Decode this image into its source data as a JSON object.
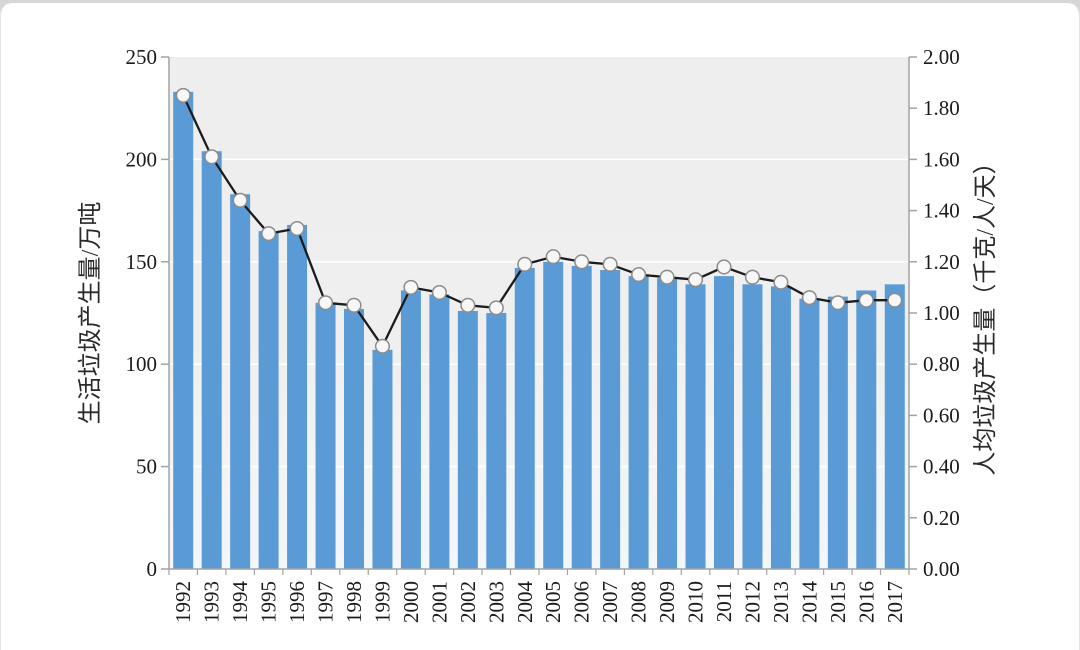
{
  "chart_data": {
    "type": "combo-bar-line",
    "title": "",
    "categories": [
      "1992",
      "1993",
      "1994",
      "1995",
      "1996",
      "1997",
      "1998",
      "1999",
      "2000",
      "2001",
      "2002",
      "2003",
      "2004",
      "2005",
      "2006",
      "2007",
      "2008",
      "2009",
      "2010",
      "2011",
      "2012",
      "2013",
      "2014",
      "2015",
      "2016",
      "2017"
    ],
    "series": [
      {
        "name": "生活垃圾产生量",
        "type": "bar",
        "axis": "left",
        "values": [
          233,
          204,
          183,
          165,
          168,
          130,
          127,
          107,
          136,
          134,
          126,
          125,
          147,
          150,
          148,
          146,
          143,
          142,
          139,
          143,
          139,
          138,
          132,
          133,
          136,
          139
        ]
      },
      {
        "name": "人均垃圾产生量",
        "type": "line",
        "axis": "right",
        "values": [
          1.85,
          1.61,
          1.44,
          1.31,
          1.33,
          1.04,
          1.03,
          0.87,
          1.1,
          1.08,
          1.03,
          1.02,
          1.19,
          1.22,
          1.2,
          1.19,
          1.15,
          1.14,
          1.13,
          1.18,
          1.14,
          1.12,
          1.06,
          1.04,
          1.05,
          1.05
        ]
      }
    ],
    "left_axis": {
      "title": "生活垃圾产生量/万吨",
      "min": 0,
      "max": 250,
      "step": 50,
      "tick_labels": [
        "0",
        "50",
        "100",
        "150",
        "200",
        "250"
      ]
    },
    "right_axis": {
      "title": "人均垃圾产生量（千克/人/天）",
      "min": 0,
      "max": 2.0,
      "step": 0.2,
      "tick_labels": [
        "0.00",
        "0.20",
        "0.40",
        "0.60",
        "0.80",
        "1.00",
        "1.20",
        "1.40",
        "1.60",
        "1.80",
        "2.00"
      ]
    },
    "grid": {
      "horizontal": true,
      "vertical": false
    },
    "legend": {
      "visible": false
    }
  },
  "style": {
    "bar_color": "#5b9bd5",
    "line_color": "#1c1c1c",
    "marker_fill": "#f7f7f7",
    "marker_stroke": "#8c8c8c",
    "axis_color": "#a3a3a3",
    "grid_color": "#ffffff",
    "plot_bg_top": "#eeeeee",
    "plot_bg_bottom": "#f3f7fa",
    "label_color": "#1b1b1b"
  }
}
